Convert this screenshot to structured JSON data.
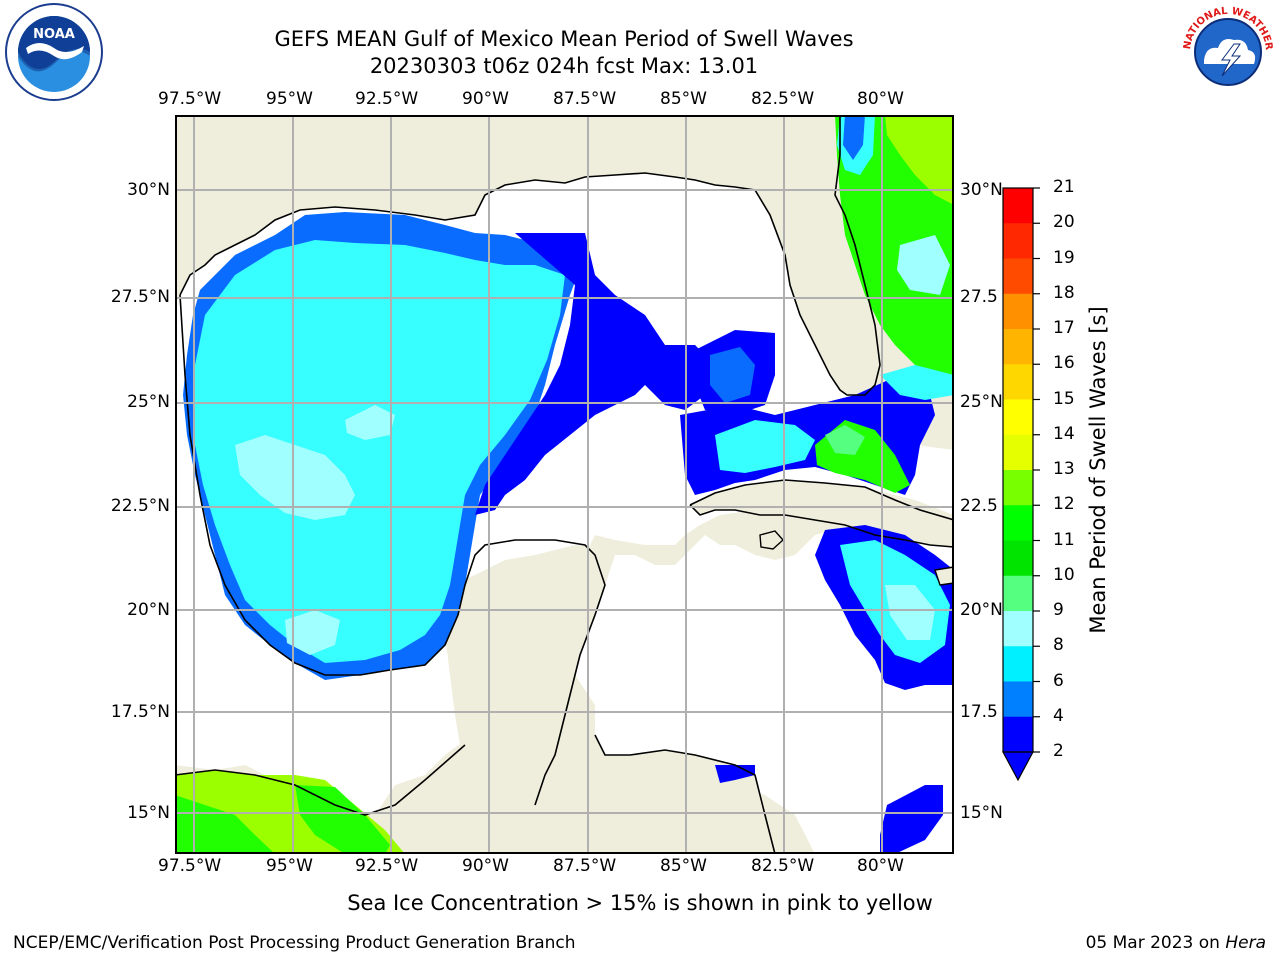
{
  "header": {
    "title_line1": "GEFS MEAN Gulf of Mexico Mean Period of Swell Waves",
    "title_line2": "20230303 t06z 024h fcst   Max: 13.01"
  },
  "logos": {
    "left": "NOAA",
    "right": "NATIONAL WEATHER SERVICE"
  },
  "axes": {
    "lon_labels": [
      "97.5°W",
      "95°W",
      "92.5°W",
      "90°W",
      "87.5°W",
      "85°W",
      "82.5°W",
      "80°W"
    ],
    "lat_labels_left": [
      "30°N",
      "27.5°N",
      "25°N",
      "22.5°N",
      "20°N",
      "17.5°N",
      "15°N"
    ],
    "lat_labels_right": [
      "30°N",
      "27.5",
      "25°N",
      "22.5",
      "20°N",
      "17.5",
      "15°N"
    ]
  },
  "colorbar": {
    "label": "Mean Period of Swell Waves [s]",
    "ticks": [
      "21",
      "20",
      "19",
      "18",
      "17",
      "16",
      "15",
      "14",
      "13",
      "12",
      "11",
      "10",
      "9",
      "8",
      "6",
      "4",
      "2"
    ],
    "colors": [
      "#ff0000",
      "#ff2800",
      "#ff4b00",
      "#ff6e00",
      "#ff9100",
      "#ffb400",
      "#ffd700",
      "#ffff00",
      "#e6ff00",
      "#c8ff00",
      "#78ff00",
      "#00ff00",
      "#00e400",
      "#55ff80",
      "#a0ffff",
      "#40ffff",
      "#00f0ff",
      "#0080ff",
      "#0000ff"
    ]
  },
  "footer": {
    "ice_note": "Sea Ice Concentration > 15% is shown in pink to yellow",
    "credit": "NCEP/EMC/Verification Post Processing Product Generation Branch",
    "date": "05 Mar 2023 on ",
    "machine": "Hera"
  },
  "map_colors": {
    "land": "#efeedd",
    "ocean_dark_blue": "#0000ff",
    "ocean_blue": "#0a6cff",
    "ocean_cyan": "#38ffff",
    "ocean_light_cyan": "#a0ffff",
    "ocean_green": "#22ff00",
    "ocean_yellow_green": "#9bff00",
    "grid": "#b0b0b0"
  }
}
